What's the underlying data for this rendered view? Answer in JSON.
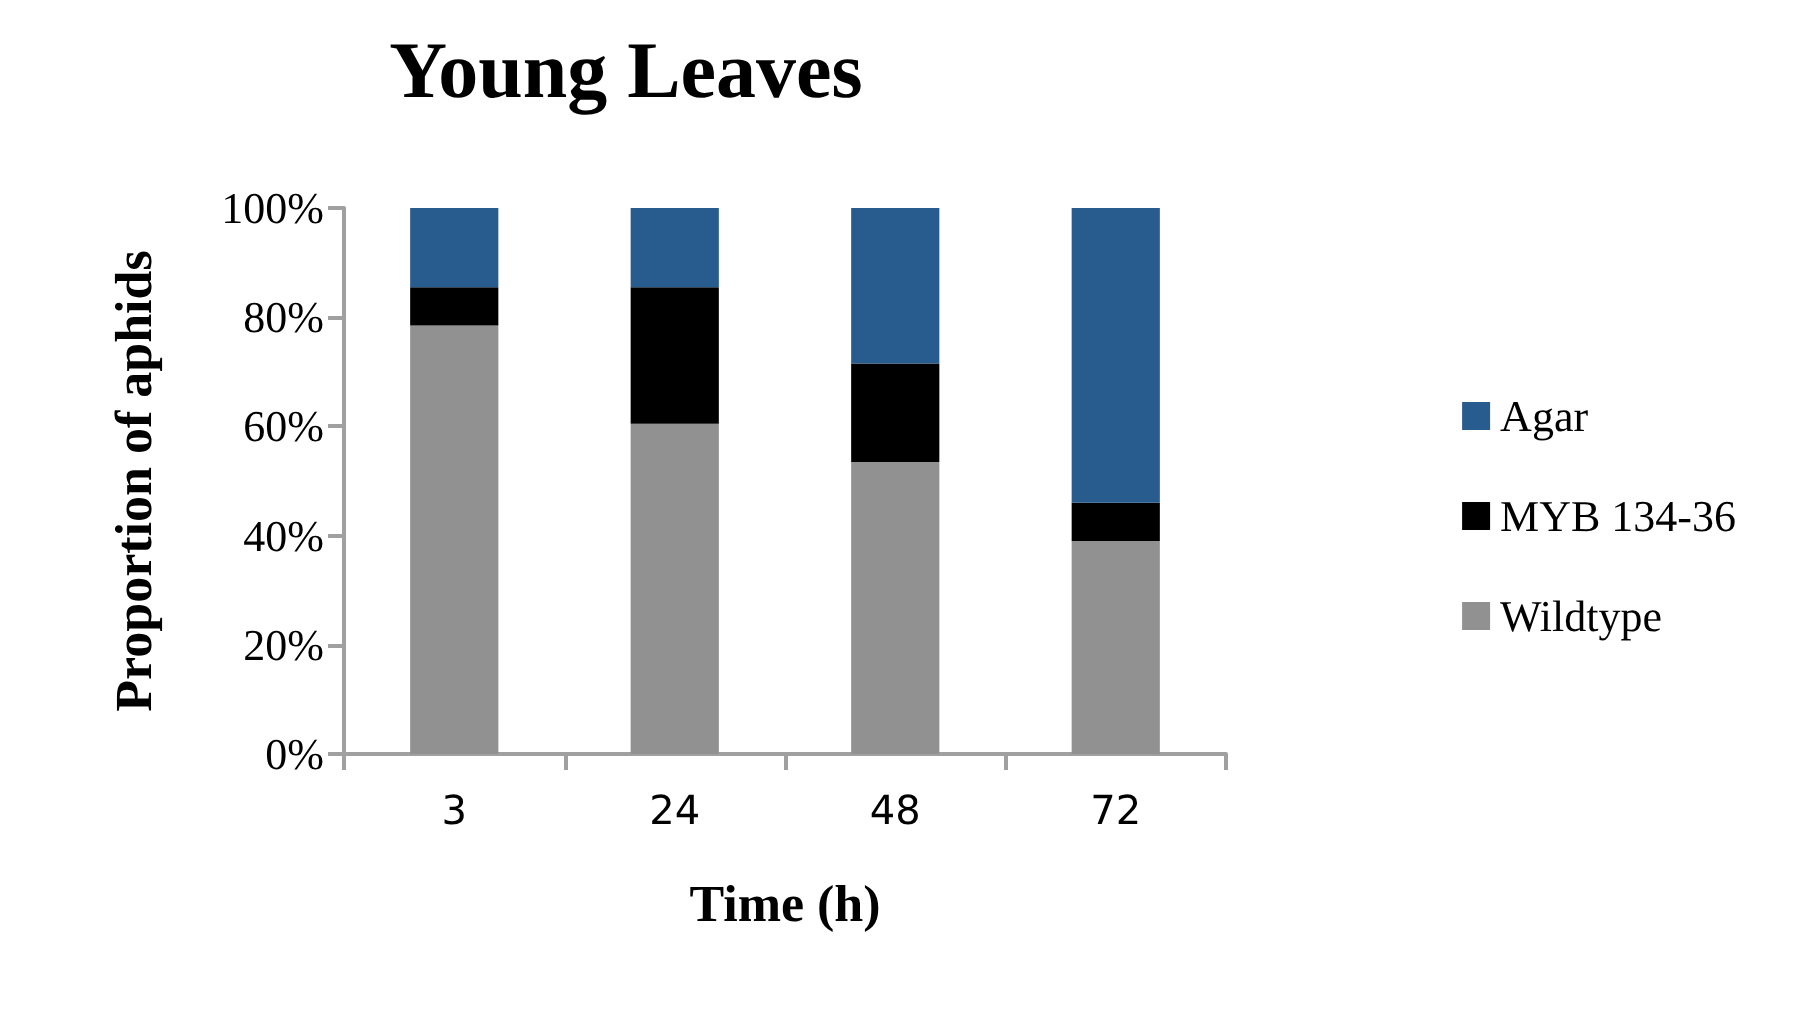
{
  "chart_data": {
    "type": "bar",
    "title": "Young Leaves",
    "xlabel": "Time (h)",
    "ylabel": "Proportion of aphids",
    "categories": [
      "3",
      "24",
      "48",
      "72"
    ],
    "stacked": true,
    "series": [
      {
        "name": "Wildtype",
        "color": "#919191",
        "values": [
          78.5,
          60.5,
          53.5,
          39
        ]
      },
      {
        "name": "MYB 134-36",
        "color": "#000000",
        "values": [
          7,
          25,
          18,
          7
        ]
      },
      {
        "name": "Agar",
        "color": "#285c8f",
        "values": [
          14.5,
          14.5,
          28.5,
          54
        ]
      }
    ],
    "ylim": [
      0,
      100
    ],
    "yticks": [
      {
        "value": 0,
        "label": "0%"
      },
      {
        "value": 20,
        "label": "20%"
      },
      {
        "value": 40,
        "label": "40%"
      },
      {
        "value": 60,
        "label": "60%"
      },
      {
        "value": 80,
        "label": "80%"
      },
      {
        "value": 100,
        "label": "100%"
      }
    ],
    "grid": false,
    "legend": "right"
  }
}
